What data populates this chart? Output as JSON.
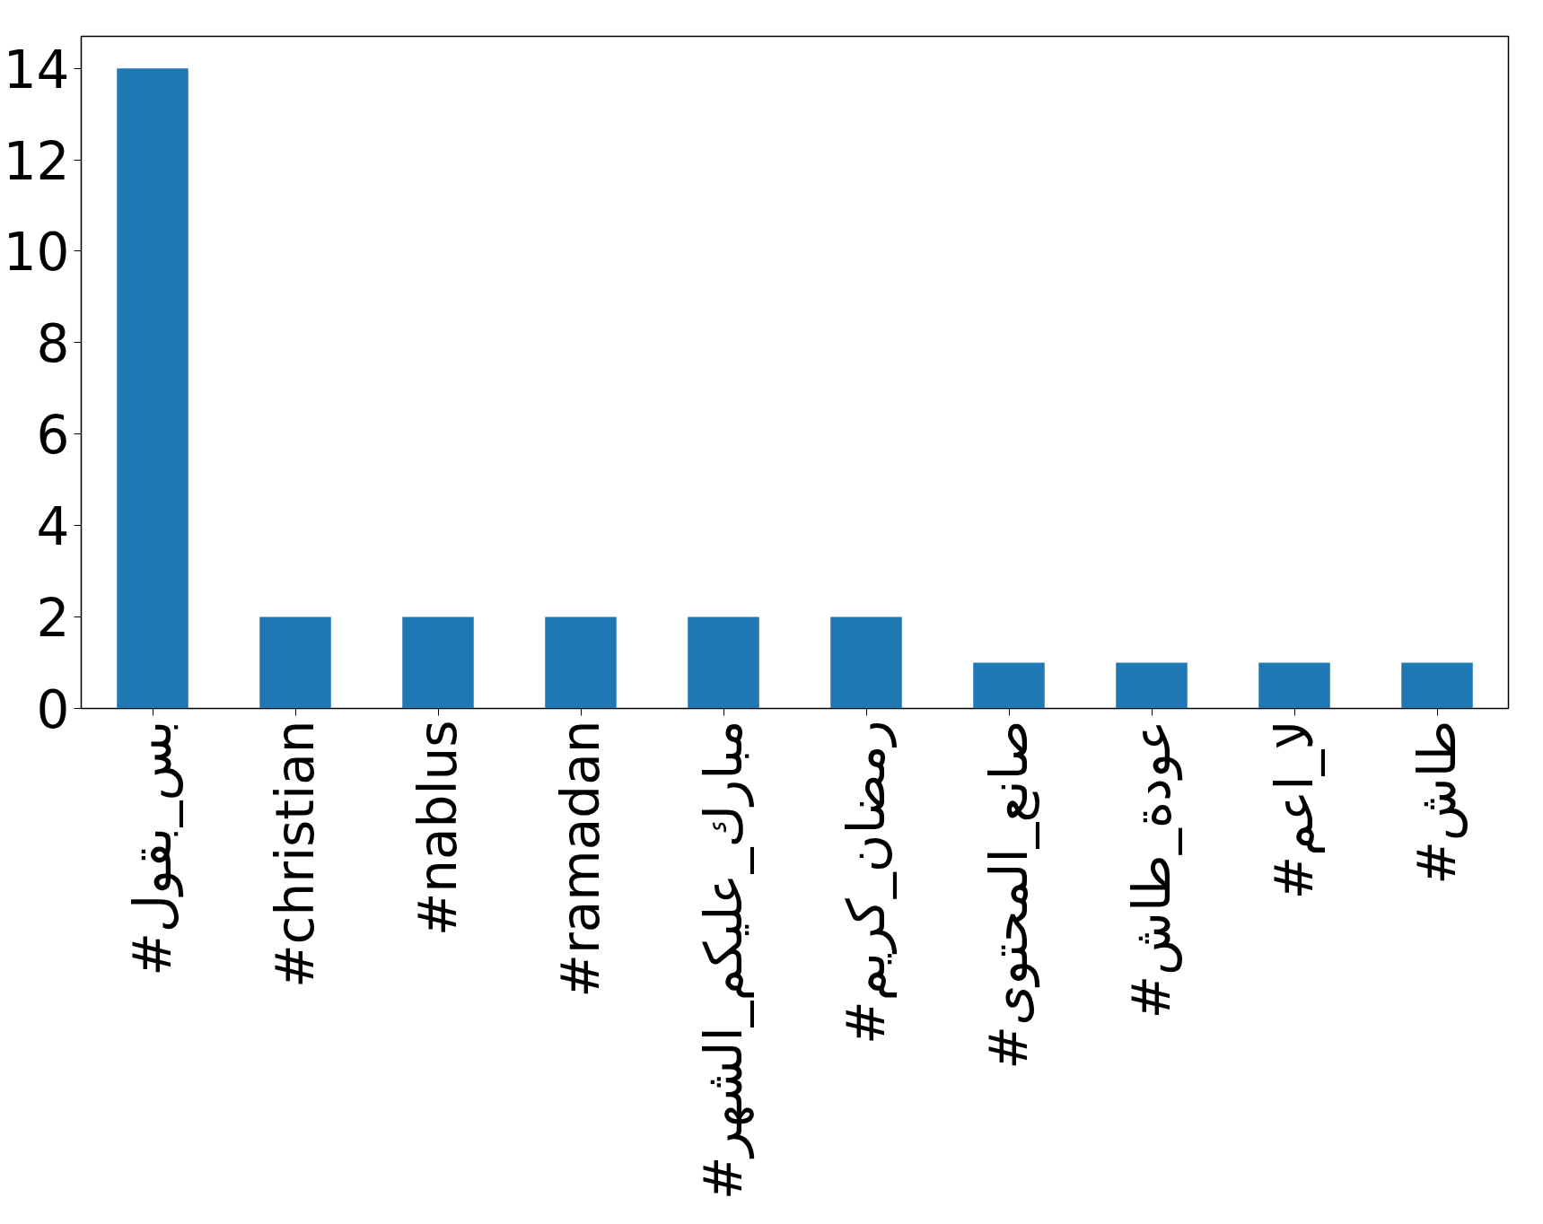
{
  "chart_data": {
    "type": "bar",
    "categories": [
      "#بس_بقول",
      "#christian",
      "#nablus",
      "#ramadan",
      "#مبارك_عليكم_الشهر",
      "#رمضان_كريم",
      "#صانع_المحتوى",
      "#عودة_طاش",
      "#لا_اعم",
      "#طاش"
    ],
    "values": [
      14,
      2,
      2,
      2,
      2,
      2,
      1,
      1,
      1,
      1
    ],
    "color": "#1f77b4",
    "ylim": [
      0,
      14.7
    ],
    "yticks": [
      0,
      2,
      4,
      6,
      8,
      10,
      12,
      14
    ],
    "grid": false
  }
}
